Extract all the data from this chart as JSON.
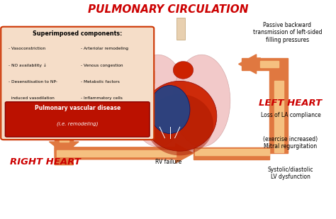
{
  "title": "PULMONARY CIRCULATION",
  "title_color": "#cc0000",
  "bg_color": "#ffffff",
  "box_title": "Superimposed components:",
  "box_left_items": [
    "- Vasoconstriction",
    "- NO availability ↓",
    "- Desensitisation to NP-",
    "  induced vasodilation"
  ],
  "box_right_items": [
    "- Arteriolar remodeling",
    "- Venous congestion",
    "- Metabolic factors",
    "- Inflammatory cells"
  ],
  "box_red_text": "Pulmonary vascular disease",
  "box_red_subtext": "(i.e. remodeling)",
  "right_heart_label": "RIGHT HEART",
  "left_heart_label": "LEFT HEART",
  "rv_failure_label": "RV failure",
  "passive_text": "Passive backward\ntransmission of left-sided\nfilling pressures",
  "left_items": [
    "Loss of LA compliance",
    "(exercise increased)\nMitral regurgitation",
    "Systolic/diastolic\nLV dysfunction"
  ],
  "arrow_color": "#e07840",
  "arrow_light": "#f5c080",
  "box_bg": "#f5ddc8",
  "box_border": "#cc3300",
  "red_box_bg": "#bb1100",
  "label_color": "#cc0000",
  "lung_color": "#f0c0c0",
  "heart_red": "#cc2200",
  "heart_blue": "#224488"
}
